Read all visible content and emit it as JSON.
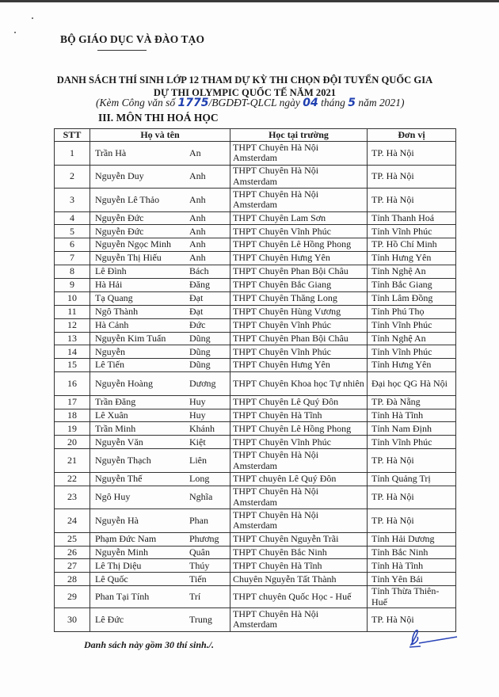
{
  "header": {
    "ministry": "BỘ GIÁO DỤC VÀ ĐÀO TẠO",
    "title_line1": "DANH SÁCH THÍ SINH LỚP 12 THAM DỰ KỲ THI CHỌN ĐỘI TUYỂN QUỐC GIA",
    "title_line2": "DỰ THI OLYMPIC QUỐC TẾ NĂM 2021",
    "sub_prefix": "(Kèm Công văn số ",
    "doc_number": "1775",
    "sub_mid1": "/BGDĐT-QLCL ngày ",
    "day": "04",
    "sub_mid2": " tháng ",
    "month": "5",
    "sub_suffix": "  năm 2021)",
    "section": "III. MÔN THI HOÁ HỌC"
  },
  "table": {
    "headers": [
      "STT",
      "Họ và tên",
      "Học tại trường",
      "Đơn vị"
    ],
    "rows": [
      {
        "stt": "1",
        "last": "Trần Hà",
        "first": "An",
        "school": "THPT Chuyên Hà Nội Amsterdam",
        "unit": "TP. Hà Nội"
      },
      {
        "stt": "2",
        "last": "Nguyễn Duy",
        "first": "Anh",
        "school": "THPT Chuyên Hà Nội Amsterdam",
        "unit": "TP. Hà Nội"
      },
      {
        "stt": "3",
        "last": "Nguyễn Lê Thảo",
        "first": "Anh",
        "school": "THPT Chuyên Hà Nội Amsterdam",
        "unit": "TP. Hà Nội"
      },
      {
        "stt": "4",
        "last": "Nguyễn Đức",
        "first": "Anh",
        "school": "THPT Chuyên Lam Sơn",
        "unit": "Tỉnh Thanh Hoá"
      },
      {
        "stt": "5",
        "last": "Nguyễn Đức",
        "first": "Anh",
        "school": "THPT Chuyên Vĩnh Phúc",
        "unit": "Tỉnh Vĩnh Phúc"
      },
      {
        "stt": "6",
        "last": "Nguyễn Ngọc Minh",
        "first": "Anh",
        "school": "THPT Chuyên Lê Hồng Phong",
        "unit": "TP. Hồ Chí Minh"
      },
      {
        "stt": "7",
        "last": "Nguyễn Thị Hiếu",
        "first": "Anh",
        "school": "THPT Chuyên Hưng Yên",
        "unit": "Tỉnh Hưng Yên"
      },
      {
        "stt": "8",
        "last": "Lê Đình",
        "first": "Bách",
        "school": "THPT Chuyên Phan Bội Châu",
        "unit": "Tỉnh Nghệ An"
      },
      {
        "stt": "9",
        "last": "Hà Hải",
        "first": "Đăng",
        "school": "THPT Chuyên Bắc Giang",
        "unit": "Tỉnh Bắc Giang"
      },
      {
        "stt": "10",
        "last": "Tạ Quang",
        "first": "Đạt",
        "school": "THPT Chuyên Thăng Long",
        "unit": "Tỉnh Lâm Đồng"
      },
      {
        "stt": "11",
        "last": "Ngô Thành",
        "first": "Đạt",
        "school": "THPT Chuyên Hùng Vương",
        "unit": "Tỉnh Phú Thọ"
      },
      {
        "stt": "12",
        "last": "Hà Cảnh",
        "first": "Đức",
        "school": "THPT Chuyên Vĩnh Phúc",
        "unit": "Tỉnh Vĩnh Phúc"
      },
      {
        "stt": "13",
        "last": "Nguyễn Kim Tuấn",
        "first": "Dũng",
        "school": "THPT Chuyên Phan Bội Châu",
        "unit": "Tỉnh Nghệ An"
      },
      {
        "stt": "14",
        "last": "Nguyễn",
        "first": "Dũng",
        "school": "THPT Chuyên Vĩnh Phúc",
        "unit": "Tỉnh Vĩnh Phúc"
      },
      {
        "stt": "15",
        "last": "Lê Tiến",
        "first": "Dũng",
        "school": "THPT Chuyên Hưng Yên",
        "unit": "Tỉnh Hưng Yên"
      },
      {
        "stt": "16",
        "last": "Nguyễn Hoàng",
        "first": "Dương",
        "school": "THPT Chuyên Khoa học Tự nhiên",
        "unit": "Đại học QG Hà Nội"
      },
      {
        "stt": "17",
        "last": "Trần Đăng",
        "first": "Huy",
        "school": "THPT Chuyên Lê Quý Đôn",
        "unit": "TP. Đà Nẵng"
      },
      {
        "stt": "18",
        "last": "Lê Xuân",
        "first": "Huy",
        "school": "THPT Chuyên Hà Tĩnh",
        "unit": "Tỉnh Hà Tĩnh"
      },
      {
        "stt": "19",
        "last": "Trần Minh",
        "first": "Khánh",
        "school": "THPT Chuyên Lê Hồng Phong",
        "unit": "Tỉnh Nam Định"
      },
      {
        "stt": "20",
        "last": "Nguyễn Văn",
        "first": "Kiệt",
        "school": "THPT Chuyên Vĩnh Phúc",
        "unit": "Tỉnh Vĩnh Phúc"
      },
      {
        "stt": "21",
        "last": "Nguyễn Thạch",
        "first": "Liên",
        "school": "THPT Chuyên Hà Nội Amsterdam",
        "unit": "TP. Hà Nội"
      },
      {
        "stt": "22",
        "last": "Nguyễn Thế",
        "first": "Long",
        "school": "THPT chuyên Lê Quý Đôn",
        "unit": "Tỉnh Quảng Trị"
      },
      {
        "stt": "23",
        "last": "Ngô Huy",
        "first": "Nghĩa",
        "school": "THPT Chuyên Hà Nội Amsterdam",
        "unit": "TP. Hà Nội"
      },
      {
        "stt": "24",
        "last": "Nguyễn Hà",
        "first": "Phan",
        "school": "THPT Chuyên Hà Nội Amsterdam",
        "unit": "TP. Hà Nội"
      },
      {
        "stt": "25",
        "last": "Phạm Đức Nam",
        "first": "Phương",
        "school": "THPT Chuyên Nguyễn Trãi",
        "unit": "Tỉnh Hải Dương"
      },
      {
        "stt": "26",
        "last": "Nguyễn Minh",
        "first": "Quân",
        "school": "THPT Chuyên Bắc Ninh",
        "unit": "Tỉnh Bắc Ninh"
      },
      {
        "stt": "27",
        "last": "Lê Thị Diệu",
        "first": "Thúy",
        "school": "THPT Chuyên Hà Tĩnh",
        "unit": "Tỉnh Hà Tĩnh"
      },
      {
        "stt": "28",
        "last": "Lê Quốc",
        "first": "Tiến",
        "school": "Chuyên Nguyễn Tất Thành",
        "unit": "Tỉnh Yên Bái"
      },
      {
        "stt": "29",
        "last": "Phan Tại Tính",
        "first": "Trí",
        "school": "THPT chuyên Quốc Học - Huế",
        "unit": "Tỉnh Thừa Thiên-Huế"
      },
      {
        "stt": "30",
        "last": "Lê Đức",
        "first": "Trung",
        "school": "THPT Chuyên Hà Nội Amsterdam",
        "unit": "TP. Hà Nội"
      }
    ]
  },
  "footer": {
    "note": "Danh sách này gồm 30  thí sinh./."
  },
  "colors": {
    "handwriting": "#1f3fb0"
  }
}
